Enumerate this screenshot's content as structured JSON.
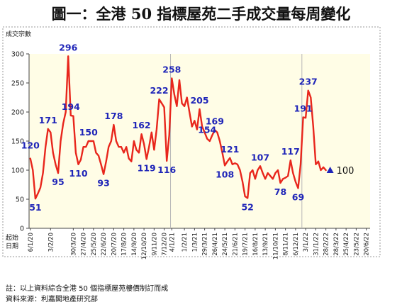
{
  "title": "圖一：全港 50 指標屋苑二手成交量每周變化",
  "notes": [
    "註：以上資料綜合全港 50 個指標屋苑樓價制訂而成",
    "資料來源：利嘉閣地產研究部"
  ],
  "chart_data": {
    "type": "line",
    "ylabel": "成交宗數",
    "xlabel": "起始日期",
    "ylim": [
      0,
      300
    ],
    "yticks": [
      0,
      50,
      100,
      150,
      200,
      250,
      300
    ],
    "grid": false,
    "legend": "none",
    "xtick_labels": [
      {
        "index": 0,
        "label": "6/1/20"
      },
      {
        "index": 8,
        "label": "3/2/20"
      },
      {
        "index": 17,
        "label": "30/3/20"
      },
      {
        "index": 21,
        "label": "27/4/20"
      },
      {
        "index": 25,
        "label": "25/5/20"
      },
      {
        "index": 29,
        "label": "22/6/20"
      },
      {
        "index": 33,
        "label": "20/7/20"
      },
      {
        "index": 37,
        "label": "17/8/20"
      },
      {
        "index": 41,
        "label": "14/9/20"
      },
      {
        "index": 45,
        "label": "12/10/20"
      },
      {
        "index": 49,
        "label": "9/11/20"
      },
      {
        "index": 53,
        "label": "7/12/20"
      },
      {
        "index": 56,
        "label": "4/1/21"
      },
      {
        "index": 61,
        "label": "1/2/21"
      },
      {
        "index": 65,
        "label": "1/3/21"
      },
      {
        "index": 69,
        "label": "29/3/21"
      },
      {
        "index": 73,
        "label": "26/4/21"
      },
      {
        "index": 77,
        "label": "24/5/21"
      },
      {
        "index": 81,
        "label": "21/6/21"
      },
      {
        "index": 85,
        "label": "19/7/21"
      },
      {
        "index": 89,
        "label": "16/8/21"
      },
      {
        "index": 93,
        "label": "13/9/21"
      },
      {
        "index": 97,
        "label": "11/10/21"
      },
      {
        "index": 101,
        "label": "8/11/21"
      },
      {
        "index": 105,
        "label": "6/12/21"
      },
      {
        "index": 109,
        "label": "3/1/22"
      },
      {
        "index": 113,
        "label": "31/1/22"
      },
      {
        "index": 117,
        "label": "28/2/22"
      },
      {
        "index": 121,
        "label": "28/3/22"
      },
      {
        "index": 125,
        "label": "25/4/22"
      },
      {
        "index": 129,
        "label": "23/5/22"
      },
      {
        "index": 133,
        "label": "20/6/22"
      }
    ],
    "series": [
      {
        "values": [
          120,
          100,
          51,
          60,
          70,
          95,
          140,
          171,
          165,
          130,
          110,
          95,
          150,
          180,
          200,
          296,
          194,
          193,
          130,
          110,
          118,
          140,
          140,
          150,
          150,
          150,
          130,
          125,
          110,
          93,
          115,
          140,
          150,
          178,
          150,
          140,
          140,
          130,
          140,
          120,
          115,
          150,
          135,
          130,
          162,
          145,
          119,
          140,
          165,
          135,
          170,
          222,
          215,
          208,
          116,
          160,
          258,
          230,
          210,
          255,
          215,
          210,
          225,
          200,
          175,
          185,
          170,
          205,
          175,
          165,
          154,
          150,
          160,
          169,
          165,
          150,
          130,
          108,
          115,
          121,
          110,
          112,
          110,
          100,
          80,
          55,
          52,
          95,
          100,
          85,
          100,
          107,
          95,
          85,
          95,
          90,
          85,
          95,
          100,
          78,
          85,
          87,
          90,
          117,
          95,
          80,
          69,
          110,
          191,
          190,
          237,
          225,
          175,
          110,
          115,
          100,
          105,
          100
        ],
        "color": "#e8261c"
      }
    ],
    "data_labels": [
      {
        "index": 0,
        "text": "120"
      },
      {
        "index": 2,
        "text": "51"
      },
      {
        "index": 7,
        "text": "171"
      },
      {
        "index": 11,
        "text": "95"
      },
      {
        "index": 15,
        "text": "296"
      },
      {
        "index": 16,
        "text": "194"
      },
      {
        "index": 19,
        "text": "110"
      },
      {
        "index": 23,
        "text": "150"
      },
      {
        "index": 29,
        "text": "93"
      },
      {
        "index": 33,
        "text": "178"
      },
      {
        "index": 44,
        "text": "162"
      },
      {
        "index": 46,
        "text": "119"
      },
      {
        "index": 51,
        "text": "222"
      },
      {
        "index": 54,
        "text": "116"
      },
      {
        "index": 56,
        "text": "258"
      },
      {
        "index": 67,
        "text": "205"
      },
      {
        "index": 70,
        "text": "154"
      },
      {
        "index": 73,
        "text": "169"
      },
      {
        "index": 77,
        "text": "108"
      },
      {
        "index": 79,
        "text": "121"
      },
      {
        "index": 86,
        "text": "52"
      },
      {
        "index": 91,
        "text": "107"
      },
      {
        "index": 99,
        "text": "78"
      },
      {
        "index": 103,
        "text": "117"
      },
      {
        "index": 106,
        "text": "69"
      },
      {
        "index": 108,
        "text": "191"
      },
      {
        "index": 110,
        "text": "237"
      }
    ],
    "last_point_label": "100",
    "label_color": "#1f25b8",
    "axis_color": "#444444",
    "divider_color": "#b8b8b8",
    "plot_background": "#fffde6",
    "year_dividers": [
      55.5,
      107.5
    ]
  }
}
